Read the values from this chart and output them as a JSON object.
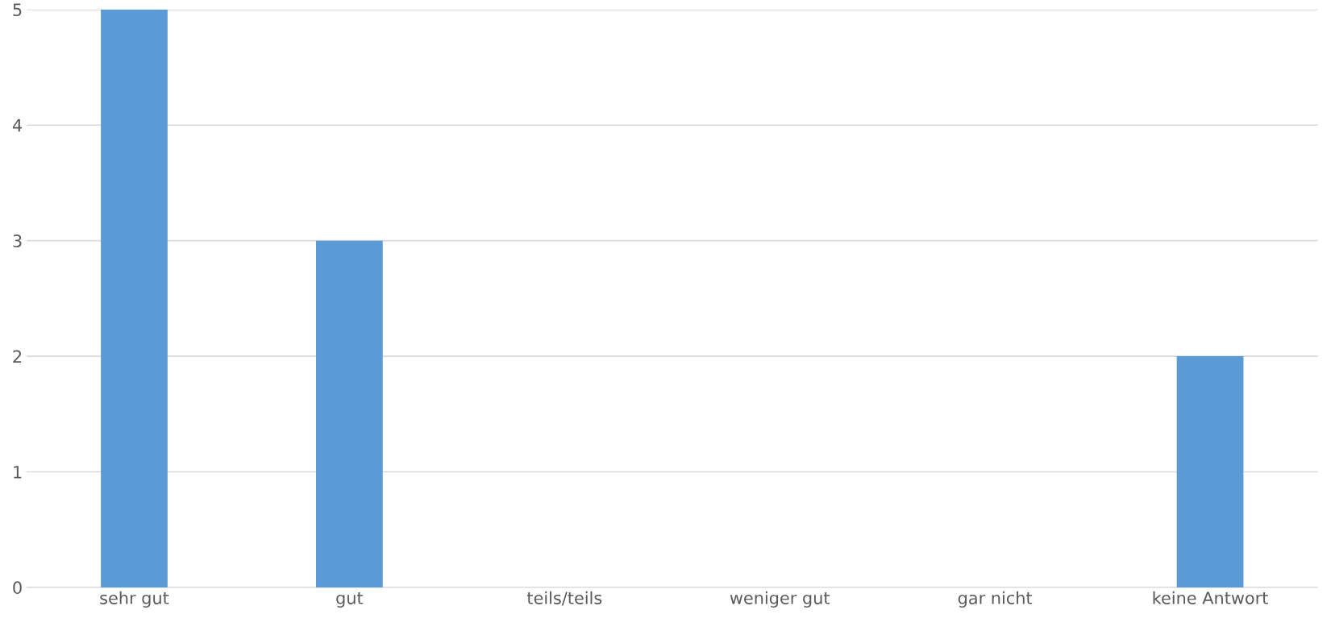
{
  "chart_data": {
    "type": "bar",
    "categories": [
      "sehr gut",
      "gut",
      "teils/teils",
      "weniger gut",
      "gar nicht",
      "keine Antwort"
    ],
    "values": [
      5,
      3,
      0,
      0,
      0,
      2
    ],
    "color": "#5b9bd5",
    "ylim": [
      0,
      5
    ],
    "yticks": [
      0,
      1,
      2,
      3,
      4,
      5
    ],
    "grid": "y",
    "legend": false
  }
}
